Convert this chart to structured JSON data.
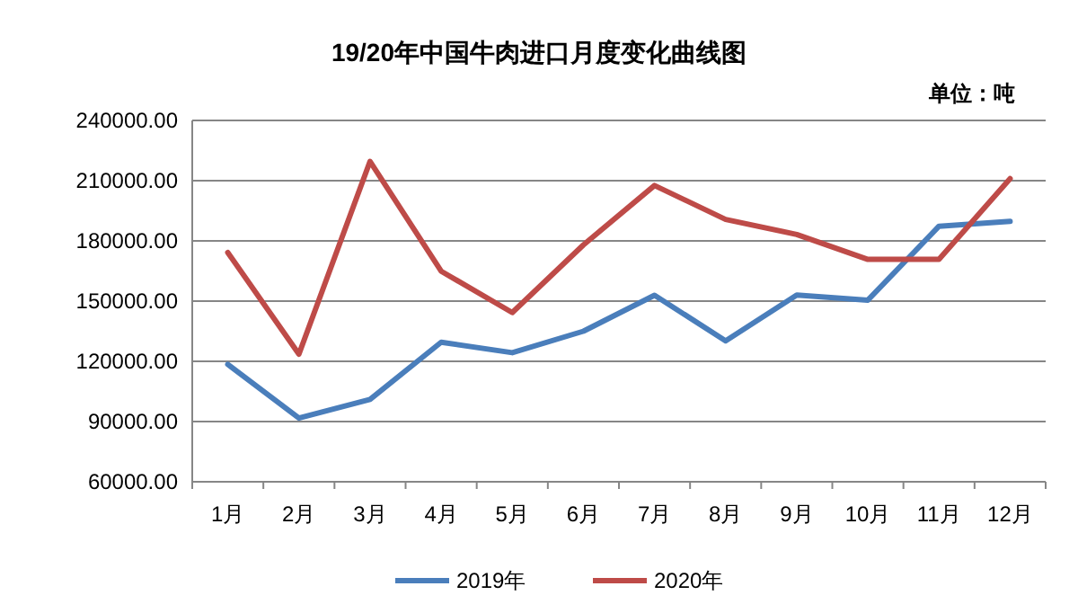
{
  "chart_data": {
    "type": "line",
    "title": "19/20年中国牛肉进口月度变化曲线图",
    "annotations": [
      "单位：吨"
    ],
    "categories": [
      "1月",
      "2月",
      "3月",
      "4月",
      "5月",
      "6月",
      "7月",
      "8月",
      "9月",
      "10月",
      "11月",
      "12月"
    ],
    "series": [
      {
        "name": "2019年",
        "color": "#4a7ebb",
        "values": [
          118500,
          91700,
          101000,
          129500,
          124300,
          135000,
          152900,
          130200,
          153000,
          150500,
          187300,
          189700
        ]
      },
      {
        "name": "2020年",
        "color": "#be4b48",
        "values": [
          174200,
          123600,
          219600,
          164900,
          144300,
          178000,
          207600,
          190700,
          183200,
          170800,
          170800,
          211000
        ]
      }
    ],
    "ylim": [
      60000,
      240000
    ],
    "yticks": [
      {
        "value": 60000,
        "label": "60000.00"
      },
      {
        "value": 90000,
        "label": "90000.00"
      },
      {
        "value": 120000,
        "label": "120000.00"
      },
      {
        "value": 150000,
        "label": "150000.00"
      },
      {
        "value": 180000,
        "label": "180000.00"
      },
      {
        "value": 210000,
        "label": "210000.00"
      },
      {
        "value": 240000,
        "label": "240000.00"
      }
    ],
    "grid": "y",
    "legend": "bottom",
    "marker": "none",
    "line_style": "solid"
  }
}
